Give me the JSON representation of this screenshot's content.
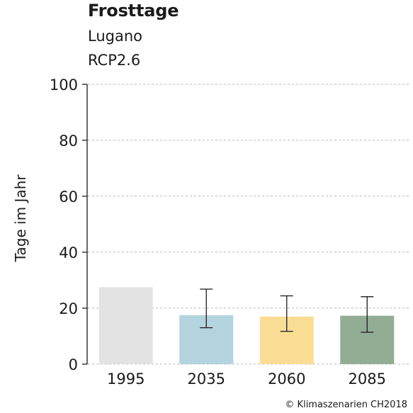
{
  "header": {
    "title": "Frosttage",
    "location": "Lugano",
    "scenario": "RCP2.6"
  },
  "credit": "© Klimaszenarien CH2018",
  "chart_data": {
    "type": "bar",
    "title": "Frosttage",
    "xlabel": "",
    "ylabel": "Tage im Jahr",
    "ylim": [
      0,
      100
    ],
    "yticks": [
      0,
      20,
      40,
      60,
      80,
      100
    ],
    "grid": "horizontal dashed",
    "categories": [
      "1995",
      "2035",
      "2060",
      "2085"
    ],
    "values": [
      27.5,
      17.5,
      17,
      17.3
    ],
    "error_low": [
      null,
      13,
      11.7,
      11.4
    ],
    "error_high": [
      null,
      26.8,
      24.4,
      24.1
    ],
    "colors": [
      "#e3e3e3",
      "#b3d4de",
      "#fadd94",
      "#93ad95"
    ]
  }
}
